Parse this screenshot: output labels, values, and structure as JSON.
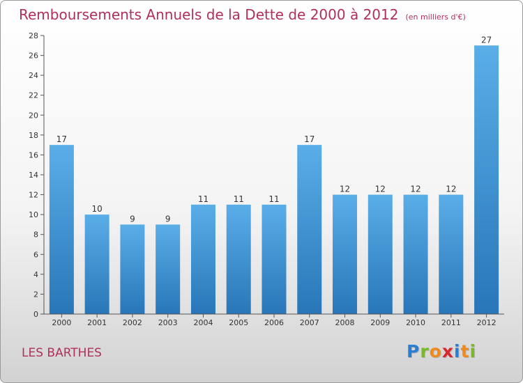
{
  "title": "Remboursements Annuels de la Dette de 2000 à 2012",
  "unit_label": "(en milliers d'€)",
  "commune": "LES BARTHES",
  "logo": {
    "letters": [
      "P",
      "r",
      "o",
      "x",
      "i",
      "t",
      "i"
    ],
    "colors": [
      "#2a7fd4",
      "#7ab82a",
      "#f08a1c",
      "#d8262d",
      "#2a7fd4",
      "#f08a1c",
      "#7ab82a"
    ]
  },
  "colors": {
    "title": "#b0305a",
    "bar_top": "#5aaee8",
    "bar_bottom": "#2876b8"
  },
  "chart_data": {
    "type": "bar",
    "categories": [
      "2000",
      "2001",
      "2002",
      "2003",
      "2004",
      "2005",
      "2006",
      "2007",
      "2008",
      "2009",
      "2010",
      "2011",
      "2012"
    ],
    "values": [
      17,
      10,
      9,
      9,
      11,
      11,
      11,
      17,
      12,
      12,
      12,
      12,
      27
    ],
    "data_labels": [
      "17",
      "10",
      "9",
      "9",
      "11",
      "11",
      "11",
      "17",
      "12",
      "12",
      "12",
      "12",
      "27"
    ],
    "ylim": [
      0,
      28
    ],
    "y_ticks": [
      "0",
      "2",
      "4",
      "6",
      "8",
      "10",
      "12",
      "14",
      "16",
      "18",
      "20",
      "22",
      "24",
      "26",
      "28"
    ],
    "grid": false,
    "legend": "none"
  }
}
